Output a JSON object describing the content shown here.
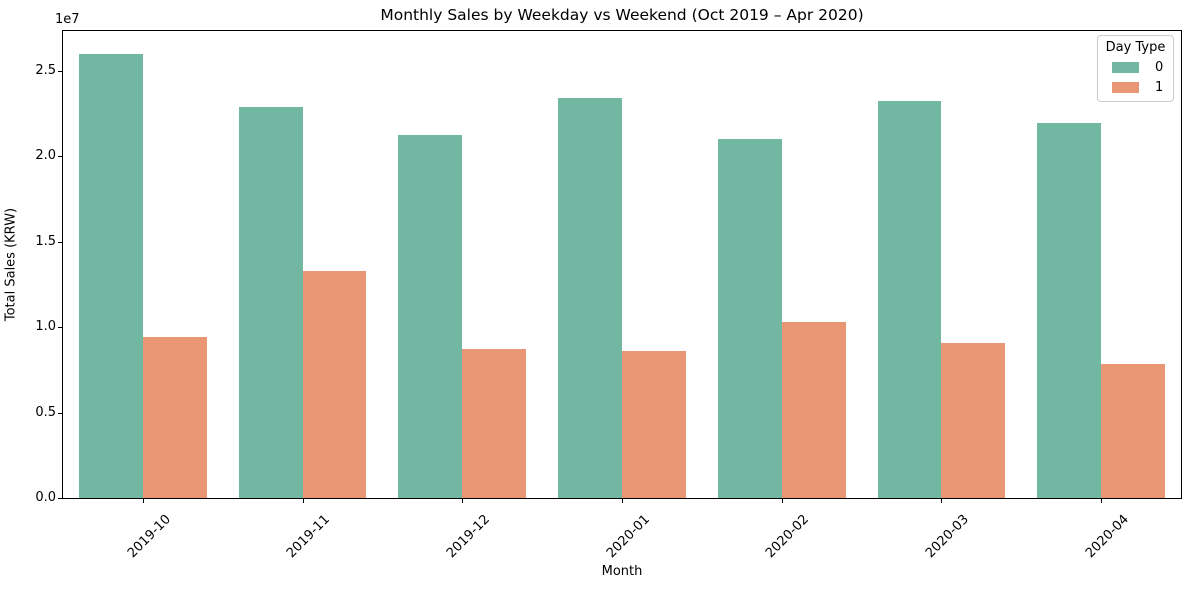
{
  "chart_data": {
    "type": "bar",
    "title": "Monthly Sales by Weekday vs Weekend (Oct 2019 – Apr 2020)",
    "xlabel": "Month",
    "ylabel": "Total Sales (KRW)",
    "scale_label": "1e7",
    "categories": [
      "2019-10",
      "2019-11",
      "2019-12",
      "2020-01",
      "2020-02",
      "2020-03",
      "2020-04"
    ],
    "series": [
      {
        "name": "0",
        "color": "#72b7a1",
        "values": [
          26000000,
          22880000,
          21240000,
          23430000,
          21010000,
          23230000,
          21960000
        ]
      },
      {
        "name": "1",
        "color": "#e99675",
        "values": [
          9440000,
          13280000,
          8700000,
          8600000,
          10300000,
          9090000,
          7820000
        ]
      }
    ],
    "ylim": [
      0,
      27330000
    ],
    "y_ticks": [
      {
        "label": "0.0",
        "value": 0
      },
      {
        "label": "0.5",
        "value": 5000000
      },
      {
        "label": "1.0",
        "value": 10000000
      },
      {
        "label": "1.5",
        "value": 15000000
      },
      {
        "label": "2.0",
        "value": 20000000
      },
      {
        "label": "2.5",
        "value": 25000000
      }
    ],
    "legend": {
      "title": "Day Type",
      "position": "upper right"
    },
    "grid": false
  }
}
